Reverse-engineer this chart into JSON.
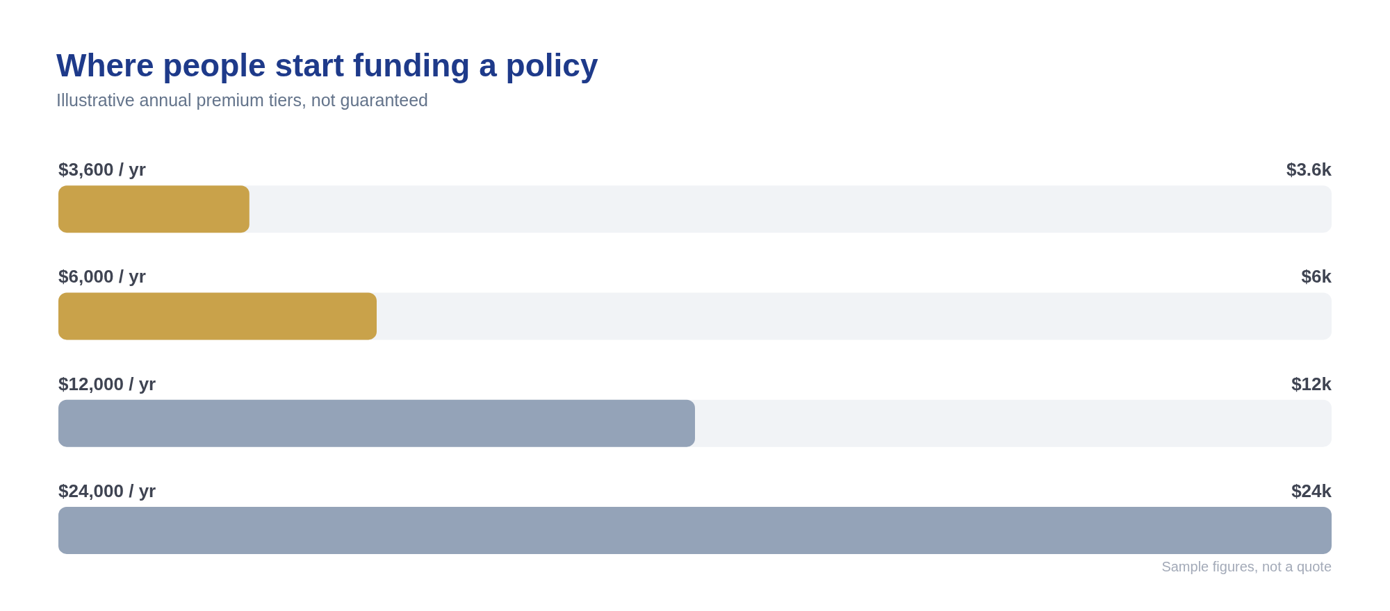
{
  "chart_data": {
    "type": "bar",
    "orientation": "horizontal",
    "title": "Where people start funding a policy",
    "subtitle": "Illustrative annual premium tiers, not guaranteed",
    "categories": [
      "$3,600 / yr",
      "$6,000 / yr",
      "$12,000 / yr",
      "$24,000 / yr"
    ],
    "values": [
      3600,
      6000,
      12000,
      24000
    ],
    "colors": [
      "#c9a24a",
      "#c9a24a",
      "#94a3b8",
      "#94a3b8"
    ],
    "value_labels": [
      "$3.6k",
      "$6k",
      "$12k",
      "$24k"
    ],
    "annotations": [
      "Sample figures, not a quote"
    ]
  }
}
